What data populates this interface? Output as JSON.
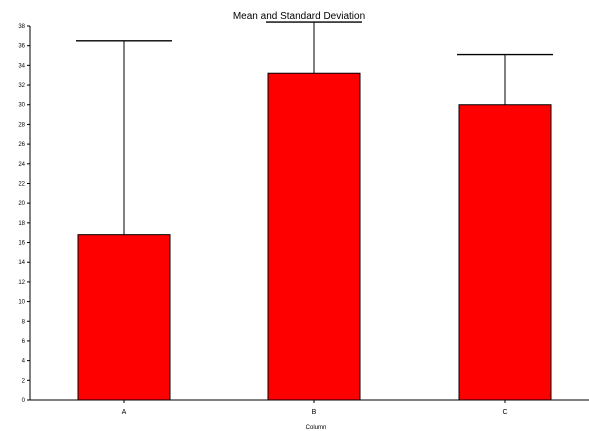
{
  "chart_data": {
    "type": "bar",
    "title": "Mean and Standard Deviation",
    "xlabel": "Column",
    "ylabel": "",
    "categories": [
      "A",
      "B",
      "C"
    ],
    "values": [
      16.8,
      33.2,
      30.0
    ],
    "error_upper": [
      36.5,
      38.4,
      35.1
    ],
    "ylim": [
      0,
      38
    ],
    "yticks": [
      0,
      2,
      4,
      6,
      8,
      10,
      12,
      14,
      16,
      18,
      20,
      22,
      24,
      26,
      28,
      30,
      32,
      34,
      36,
      38
    ],
    "grid": false,
    "legend": "none",
    "bar_color": "#ff0000",
    "bar_edge_color": "#000000"
  }
}
